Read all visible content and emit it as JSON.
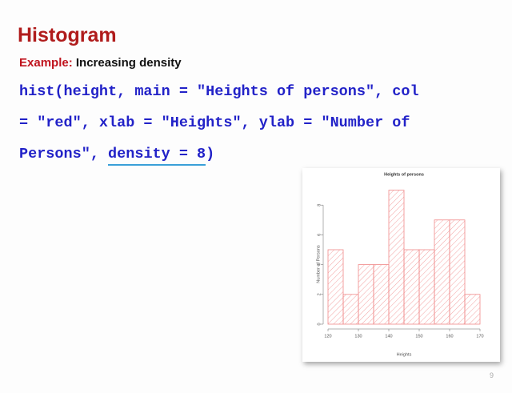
{
  "slide": {
    "title": "Histogram",
    "example_label": "Example:",
    "example_text": "Increasing  density",
    "code": [
      "hist(height, main = \"Heights of persons\", col",
      "= \"red\", xlab = \"Heights\", ylab = \"Number of"
    ],
    "code_last": [
      "Persons\", ",
      "density = 8",
      ")"
    ],
    "page_number": "9"
  },
  "chart_data": {
    "type": "histogram",
    "title": "Heights of persons",
    "xlabel": "Heights",
    "ylabel": "Number of Persons",
    "bins": [
      120,
      125,
      130,
      135,
      140,
      145,
      150,
      155,
      160,
      165,
      170
    ],
    "values": [
      5,
      2,
      4,
      4,
      9,
      5,
      5,
      7,
      7,
      2
    ],
    "color": "#f08a8a",
    "xlim": [
      120,
      170
    ],
    "xticks": [
      120,
      130,
      140,
      150,
      160,
      170
    ],
    "ylim": [
      0,
      9.3
    ],
    "yticks": [
      0,
      2,
      4,
      6,
      8
    ]
  }
}
